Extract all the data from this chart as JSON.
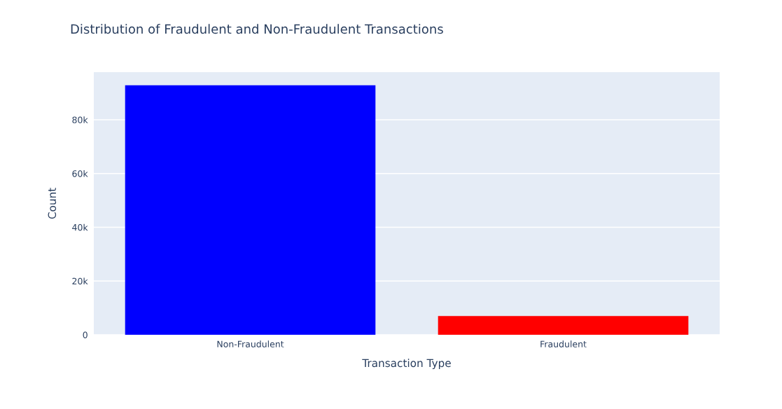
{
  "chart_data": {
    "type": "bar",
    "title": "Distribution of Fraudulent and Non-Fraudulent Transactions",
    "xlabel": "Transaction Type",
    "ylabel": "Count",
    "categories": [
      "Non-Fraudulent",
      "Fraudulent"
    ],
    "values": [
      92800,
      7000
    ],
    "colors": [
      "#0000ff",
      "#ff0000"
    ],
    "ylim": [
      0,
      97700
    ],
    "yticks": [
      {
        "value": 0,
        "label": "0"
      },
      {
        "value": 20000,
        "label": "20k"
      },
      {
        "value": 40000,
        "label": "40k"
      },
      {
        "value": 60000,
        "label": "60k"
      },
      {
        "value": 80000,
        "label": "80k"
      }
    ],
    "grid": "y",
    "legend": false
  }
}
